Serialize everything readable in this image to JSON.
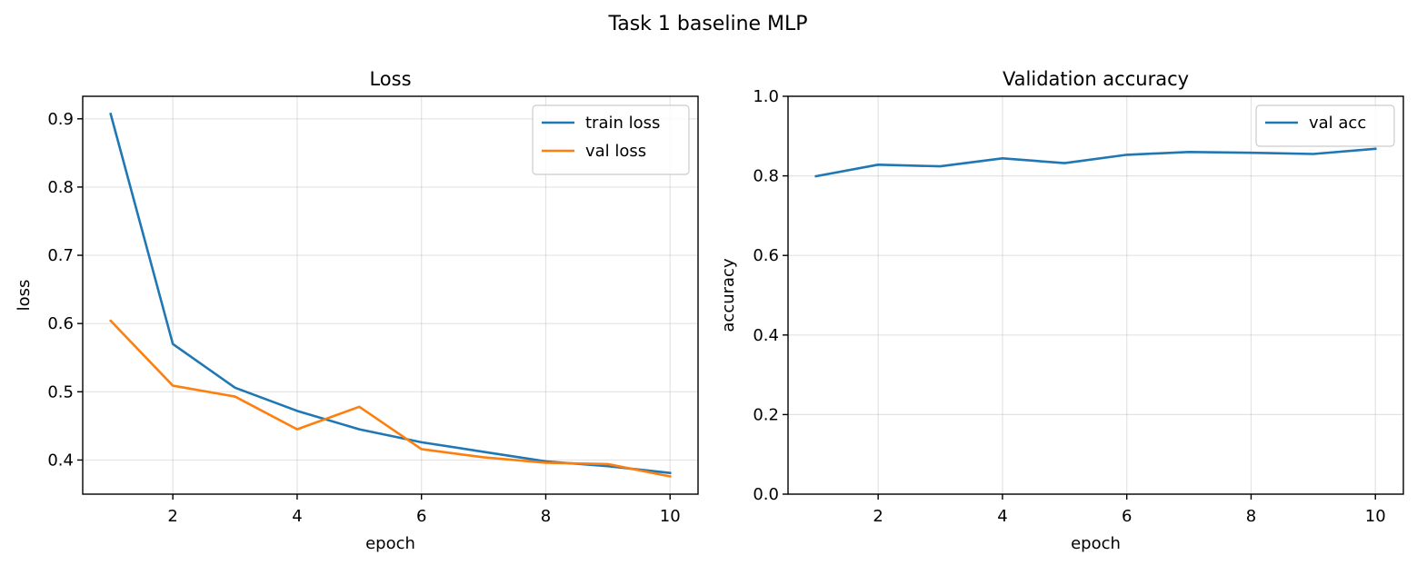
{
  "figure": {
    "suptitle": "Task 1 baseline MLP"
  },
  "chart_data": [
    {
      "type": "line",
      "title": "Loss",
      "xlabel": "epoch",
      "ylabel": "loss",
      "x": [
        1,
        2,
        3,
        4,
        5,
        6,
        7,
        8,
        9,
        10
      ],
      "xlim": [
        0.55,
        10.45
      ],
      "ylim": [
        0.35,
        0.933
      ],
      "xticks": [
        2,
        4,
        6,
        8,
        10
      ],
      "yticks": [
        0.4,
        0.5,
        0.6,
        0.7,
        0.8,
        0.9
      ],
      "ytick_labels": [
        "0.4",
        "0.5",
        "0.6",
        "0.7",
        "0.8",
        "0.9"
      ],
      "grid": true,
      "legend_position": "top-right",
      "series": [
        {
          "name": "train loss",
          "color": "#1f77b4",
          "values": [
            0.907,
            0.57,
            0.506,
            0.472,
            0.445,
            0.426,
            0.412,
            0.398,
            0.391,
            0.381
          ]
        },
        {
          "name": "val loss",
          "color": "#ff7f0e",
          "values": [
            0.604,
            0.509,
            0.493,
            0.445,
            0.478,
            0.416,
            0.404,
            0.396,
            0.394,
            0.376
          ]
        }
      ]
    },
    {
      "type": "line",
      "title": "Validation accuracy",
      "xlabel": "epoch",
      "ylabel": "accuracy",
      "x": [
        1,
        2,
        3,
        4,
        5,
        6,
        7,
        8,
        9,
        10
      ],
      "xlim": [
        0.55,
        10.45
      ],
      "ylim": [
        0.0,
        1.0
      ],
      "xticks": [
        2,
        4,
        6,
        8,
        10
      ],
      "yticks": [
        0.0,
        0.2,
        0.4,
        0.6,
        0.8,
        1.0
      ],
      "ytick_labels": [
        "0.0",
        "0.2",
        "0.4",
        "0.6",
        "0.8",
        "1.0"
      ],
      "grid": true,
      "legend_position": "top-right",
      "series": [
        {
          "name": "val acc",
          "color": "#1f77b4",
          "values": [
            0.799,
            0.828,
            0.824,
            0.844,
            0.832,
            0.853,
            0.86,
            0.858,
            0.855,
            0.868
          ]
        }
      ]
    }
  ]
}
